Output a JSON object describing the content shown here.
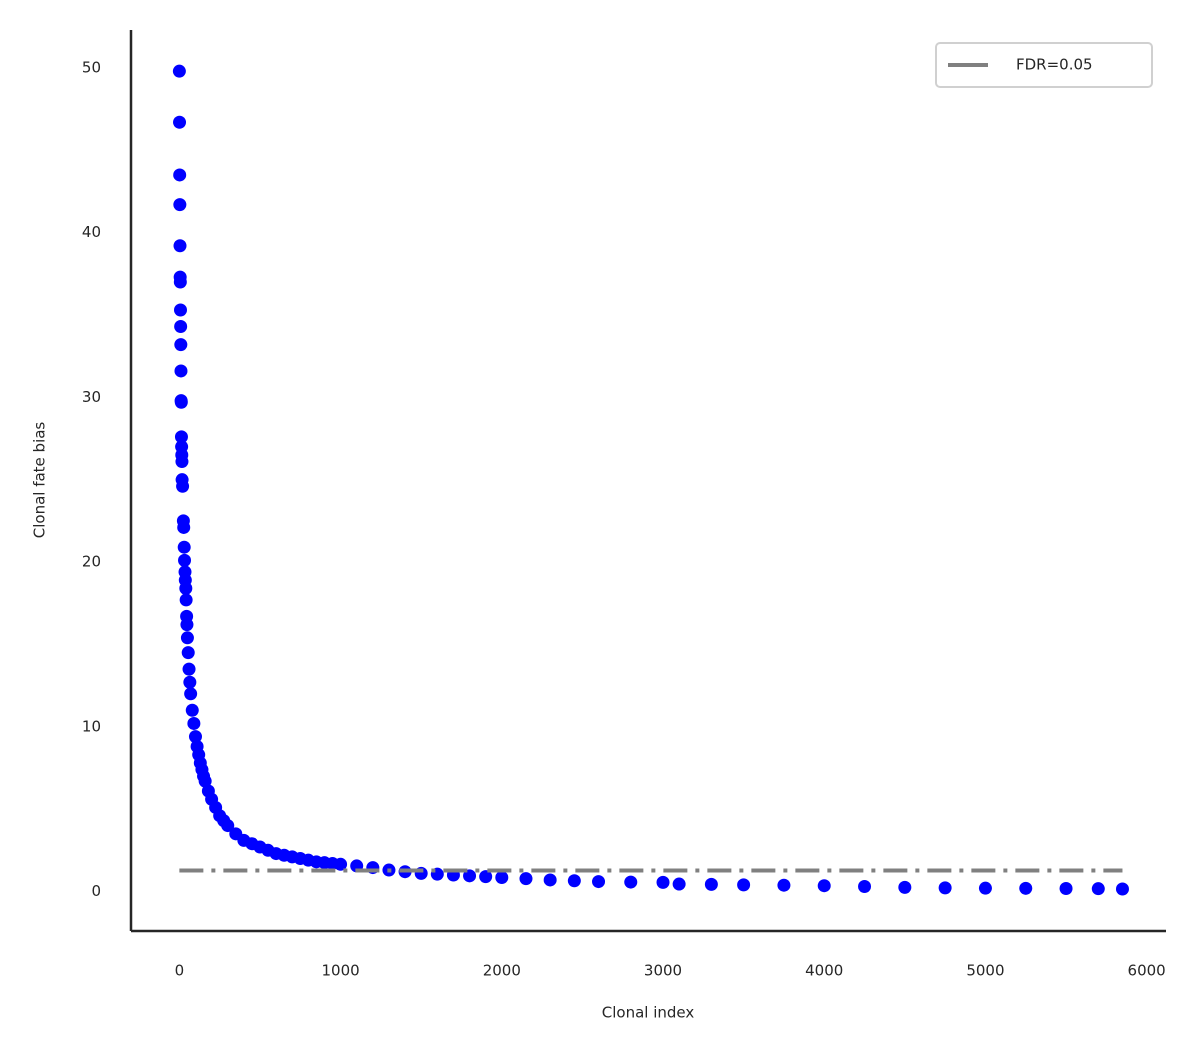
{
  "chart_data": {
    "type": "scatter",
    "xlabel": "Clonal index",
    "ylabel": "Clonal fate bias",
    "series": [
      {
        "color": "#0000ff",
        "x": [
          0,
          1,
          2,
          3,
          4,
          5,
          6,
          7,
          8,
          9,
          10,
          11,
          12,
          13,
          14,
          15,
          16,
          17,
          20,
          25,
          27,
          30,
          32,
          35,
          37,
          40,
          42,
          45,
          47,
          50,
          55,
          60,
          65,
          70,
          80,
          90,
          100,
          110,
          120,
          130,
          140,
          150,
          160,
          180,
          200,
          225,
          250,
          275,
          300,
          350,
          400,
          450,
          500,
          550,
          600,
          650,
          700,
          750,
          800,
          850,
          900,
          950,
          1000,
          1100,
          1200,
          1300,
          1400,
          1500,
          1600,
          1700,
          1800,
          1900,
          2000,
          2150,
          2300,
          2450,
          2600,
          2800,
          3000,
          3100,
          3300,
          3500,
          3750,
          4000,
          4250,
          4500,
          4750,
          5000,
          5250,
          5500,
          5700,
          5850
        ],
        "values": [
          49.8,
          46.7,
          43.5,
          41.7,
          39.2,
          37.3,
          37.0,
          35.3,
          34.3,
          33.2,
          31.6,
          29.8,
          29.7,
          27.6,
          27.0,
          26.5,
          26.1,
          25.0,
          24.6,
          22.5,
          22.1,
          20.9,
          20.1,
          19.4,
          18.9,
          18.4,
          17.7,
          16.7,
          16.2,
          15.4,
          14.5,
          13.5,
          12.7,
          12.0,
          11.0,
          10.2,
          9.4,
          8.8,
          8.3,
          7.8,
          7.4,
          7.0,
          6.7,
          6.1,
          5.6,
          5.1,
          4.6,
          4.3,
          4.0,
          3.5,
          3.1,
          2.9,
          2.7,
          2.5,
          2.3,
          2.2,
          2.1,
          2.0,
          1.9,
          1.8,
          1.75,
          1.7,
          1.65,
          1.55,
          1.45,
          1.3,
          1.2,
          1.1,
          1.05,
          1.0,
          0.95,
          0.9,
          0.85,
          0.78,
          0.7,
          0.65,
          0.6,
          0.57,
          0.55,
          0.45,
          0.43,
          0.4,
          0.38,
          0.35,
          0.3,
          0.25,
          0.22,
          0.2,
          0.19,
          0.18,
          0.17,
          0.15
        ]
      }
    ],
    "hline": {
      "name": "FDR=0.05",
      "y": 1.27,
      "xmin": 0,
      "xmax": 5850,
      "color": "#808080"
    },
    "xlim": [
      -300,
      6120
    ],
    "ylim": [
      -2.4,
      52.3
    ],
    "xticks": [
      0,
      1000,
      2000,
      3000,
      4000,
      5000,
      6000
    ],
    "yticks": [
      0,
      10,
      20,
      30,
      40,
      50
    ],
    "legend": "upper right"
  }
}
